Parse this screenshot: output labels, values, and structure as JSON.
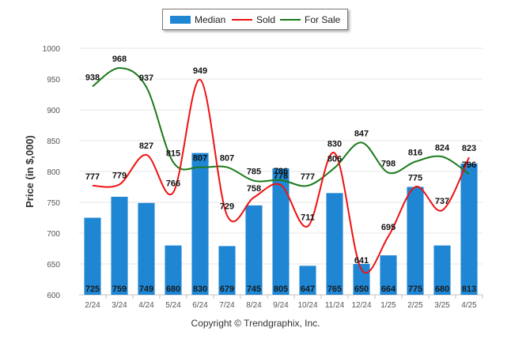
{
  "chart_data": {
    "type": "bar",
    "ylabel": "Price (in $,000)",
    "ylim": [
      600,
      1000
    ],
    "yticks": [
      "600",
      "650",
      "700",
      "750",
      "800",
      "850",
      "900",
      "950",
      "1000"
    ],
    "categories": [
      "2/24",
      "3/24",
      "4/24",
      "5/24",
      "6/24",
      "7/24",
      "8/24",
      "9/24",
      "10/24",
      "11/24",
      "12/24",
      "1/25",
      "2/25",
      "3/25",
      "4/25"
    ],
    "grid": true,
    "legend_position": "top-center",
    "series": [
      {
        "name": "Median",
        "kind": "bar",
        "color": "#1f86d4",
        "values": [
          725,
          759,
          749,
          680,
          830,
          679,
          745,
          805,
          647,
          765,
          650,
          664,
          775,
          680,
          813
        ]
      },
      {
        "name": "Sold",
        "kind": "line",
        "color": "#ee1111",
        "values": [
          777,
          779,
          827,
          766,
          949,
          729,
          758,
          778,
          711,
          830,
          641,
          695,
          775,
          737,
          823
        ]
      },
      {
        "name": "For Sale",
        "kind": "line",
        "color": "#1a7a1a",
        "values": [
          938,
          968,
          937,
          815,
          807,
          807,
          785,
          786,
          777,
          806,
          847,
          798,
          816,
          824,
          796
        ]
      }
    ]
  },
  "legend": {
    "median": "Median",
    "sold": "Sold",
    "for_sale": "For Sale"
  },
  "copyright": "Copyright © Trendgraphix, Inc."
}
